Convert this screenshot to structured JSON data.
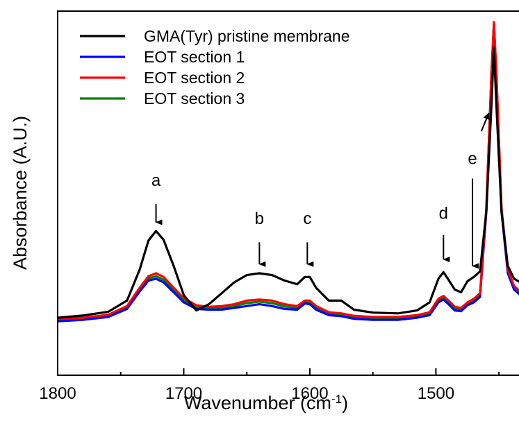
{
  "chart_data": {
    "type": "line",
    "xlabel": "Wavenumber (cm",
    "xlabel_sup": "-1",
    "xlabel_end": ")",
    "ylabel": "Absorbance  (A.U.)",
    "xlim": [
      1800,
      1433
    ],
    "ylim": [
      0,
      1
    ],
    "x_direction": "reversed",
    "xticks": [
      "1800",
      "1700",
      "1600",
      "1500"
    ],
    "grid": false,
    "legend_position": "top-left",
    "series": [
      {
        "name": "GMA(Tyr) pristine membrane",
        "color": "#000000",
        "points": [
          [
            1800,
            0.158
          ],
          [
            1780,
            0.164
          ],
          [
            1760,
            0.174
          ],
          [
            1745,
            0.205
          ],
          [
            1735,
            0.29
          ],
          [
            1728,
            0.37
          ],
          [
            1722,
            0.396
          ],
          [
            1716,
            0.372
          ],
          [
            1708,
            0.3
          ],
          [
            1700,
            0.22
          ],
          [
            1690,
            0.178
          ],
          [
            1680,
            0.195
          ],
          [
            1670,
            0.225
          ],
          [
            1660,
            0.255
          ],
          [
            1650,
            0.275
          ],
          [
            1640,
            0.28
          ],
          [
            1630,
            0.275
          ],
          [
            1620,
            0.26
          ],
          [
            1610,
            0.25
          ],
          [
            1604,
            0.27
          ],
          [
            1600,
            0.27
          ],
          [
            1595,
            0.24
          ],
          [
            1585,
            0.205
          ],
          [
            1575,
            0.205
          ],
          [
            1565,
            0.18
          ],
          [
            1550,
            0.172
          ],
          [
            1530,
            0.17
          ],
          [
            1515,
            0.178
          ],
          [
            1505,
            0.2
          ],
          [
            1498,
            0.265
          ],
          [
            1494,
            0.283
          ],
          [
            1490,
            0.262
          ],
          [
            1485,
            0.235
          ],
          [
            1480,
            0.228
          ],
          [
            1475,
            0.258
          ],
          [
            1470,
            0.27
          ],
          [
            1465,
            0.285
          ],
          [
            1460,
            0.45
          ],
          [
            1456,
            0.74
          ],
          [
            1454,
            0.9
          ],
          [
            1452,
            0.74
          ],
          [
            1448,
            0.45
          ],
          [
            1443,
            0.3
          ],
          [
            1438,
            0.265
          ],
          [
            1433,
            0.255
          ]
        ]
      },
      {
        "name": "EOT section 1",
        "color": "#0000ff",
        "points": [
          [
            1800,
            0.148
          ],
          [
            1780,
            0.152
          ],
          [
            1760,
            0.16
          ],
          [
            1745,
            0.182
          ],
          [
            1735,
            0.23
          ],
          [
            1728,
            0.26
          ],
          [
            1722,
            0.265
          ],
          [
            1716,
            0.255
          ],
          [
            1708,
            0.228
          ],
          [
            1700,
            0.2
          ],
          [
            1690,
            0.182
          ],
          [
            1680,
            0.18
          ],
          [
            1670,
            0.18
          ],
          [
            1660,
            0.185
          ],
          [
            1650,
            0.19
          ],
          [
            1640,
            0.195
          ],
          [
            1630,
            0.19
          ],
          [
            1620,
            0.182
          ],
          [
            1610,
            0.18
          ],
          [
            1604,
            0.197
          ],
          [
            1600,
            0.195
          ],
          [
            1595,
            0.18
          ],
          [
            1585,
            0.165
          ],
          [
            1575,
            0.162
          ],
          [
            1565,
            0.155
          ],
          [
            1550,
            0.152
          ],
          [
            1530,
            0.152
          ],
          [
            1515,
            0.158
          ],
          [
            1505,
            0.165
          ],
          [
            1498,
            0.2
          ],
          [
            1494,
            0.208
          ],
          [
            1490,
            0.195
          ],
          [
            1485,
            0.178
          ],
          [
            1480,
            0.176
          ],
          [
            1475,
            0.192
          ],
          [
            1470,
            0.2
          ],
          [
            1465,
            0.215
          ],
          [
            1460,
            0.45
          ],
          [
            1456,
            0.82
          ],
          [
            1454,
            0.96
          ],
          [
            1452,
            0.82
          ],
          [
            1448,
            0.45
          ],
          [
            1443,
            0.28
          ],
          [
            1438,
            0.235
          ],
          [
            1433,
            0.22
          ]
        ]
      },
      {
        "name": "EOT section 2",
        "color": "#ff0000",
        "points": [
          [
            1800,
            0.155
          ],
          [
            1780,
            0.158
          ],
          [
            1760,
            0.166
          ],
          [
            1745,
            0.19
          ],
          [
            1735,
            0.24
          ],
          [
            1728,
            0.272
          ],
          [
            1722,
            0.28
          ],
          [
            1716,
            0.27
          ],
          [
            1708,
            0.24
          ],
          [
            1700,
            0.212
          ],
          [
            1690,
            0.192
          ],
          [
            1680,
            0.188
          ],
          [
            1670,
            0.19
          ],
          [
            1660,
            0.195
          ],
          [
            1650,
            0.205
          ],
          [
            1640,
            0.208
          ],
          [
            1630,
            0.205
          ],
          [
            1620,
            0.195
          ],
          [
            1610,
            0.19
          ],
          [
            1604,
            0.205
          ],
          [
            1600,
            0.205
          ],
          [
            1595,
            0.19
          ],
          [
            1585,
            0.173
          ],
          [
            1575,
            0.17
          ],
          [
            1565,
            0.163
          ],
          [
            1550,
            0.16
          ],
          [
            1530,
            0.16
          ],
          [
            1515,
            0.165
          ],
          [
            1505,
            0.173
          ],
          [
            1498,
            0.21
          ],
          [
            1494,
            0.218
          ],
          [
            1490,
            0.205
          ],
          [
            1485,
            0.188
          ],
          [
            1480,
            0.185
          ],
          [
            1475,
            0.2
          ],
          [
            1470,
            0.21
          ],
          [
            1465,
            0.225
          ],
          [
            1460,
            0.46
          ],
          [
            1456,
            0.83
          ],
          [
            1454,
            0.97
          ],
          [
            1452,
            0.83
          ],
          [
            1448,
            0.46
          ],
          [
            1443,
            0.29
          ],
          [
            1438,
            0.245
          ],
          [
            1433,
            0.23
          ]
        ]
      },
      {
        "name": "EOT section 3",
        "color": "#008000",
        "points": [
          [
            1800,
            0.152
          ],
          [
            1780,
            0.155
          ],
          [
            1760,
            0.163
          ],
          [
            1745,
            0.186
          ],
          [
            1735,
            0.235
          ],
          [
            1728,
            0.266
          ],
          [
            1722,
            0.272
          ],
          [
            1716,
            0.262
          ],
          [
            1708,
            0.234
          ],
          [
            1700,
            0.206
          ],
          [
            1690,
            0.187
          ],
          [
            1680,
            0.184
          ],
          [
            1670,
            0.185
          ],
          [
            1660,
            0.19
          ],
          [
            1650,
            0.198
          ],
          [
            1640,
            0.202
          ],
          [
            1630,
            0.198
          ],
          [
            1620,
            0.189
          ],
          [
            1610,
            0.185
          ],
          [
            1604,
            0.201
          ],
          [
            1600,
            0.2
          ],
          [
            1595,
            0.185
          ],
          [
            1585,
            0.169
          ],
          [
            1575,
            0.166
          ],
          [
            1565,
            0.159
          ],
          [
            1550,
            0.156
          ],
          [
            1530,
            0.156
          ],
          [
            1515,
            0.161
          ],
          [
            1505,
            0.169
          ],
          [
            1498,
            0.205
          ],
          [
            1494,
            0.213
          ],
          [
            1490,
            0.2
          ],
          [
            1485,
            0.183
          ],
          [
            1480,
            0.18
          ],
          [
            1475,
            0.196
          ],
          [
            1470,
            0.205
          ],
          [
            1465,
            0.22
          ],
          [
            1460,
            0.455
          ],
          [
            1456,
            0.825
          ],
          [
            1454,
            0.965
          ],
          [
            1452,
            0.825
          ],
          [
            1448,
            0.455
          ],
          [
            1443,
            0.285
          ],
          [
            1438,
            0.24
          ],
          [
            1433,
            0.225
          ]
        ]
      }
    ],
    "series_draw_order": [
      3,
      1,
      2,
      0
    ],
    "annotations": [
      {
        "label": "a",
        "x": 1722,
        "arrow_top": 0.47,
        "arrow_tip": 0.42,
        "label_y": 0.52
      },
      {
        "label": "b",
        "x": 1640,
        "arrow_top": 0.365,
        "arrow_tip": 0.305,
        "label_y": 0.415
      },
      {
        "label": "c",
        "x": 1602,
        "arrow_top": 0.365,
        "arrow_tip": 0.305,
        "label_y": 0.415
      },
      {
        "label": "d",
        "x": 1494,
        "arrow_top": 0.385,
        "arrow_tip": 0.318,
        "label_y": 0.43
      },
      {
        "label": "e",
        "x": 1471,
        "arrow_top": 0.54,
        "arrow_tip": 0.3,
        "label_y": 0.58
      }
    ],
    "extra_arrow": {
      "from": [
        1464,
        0.67
      ],
      "to": [
        1458,
        0.72
      ]
    }
  }
}
